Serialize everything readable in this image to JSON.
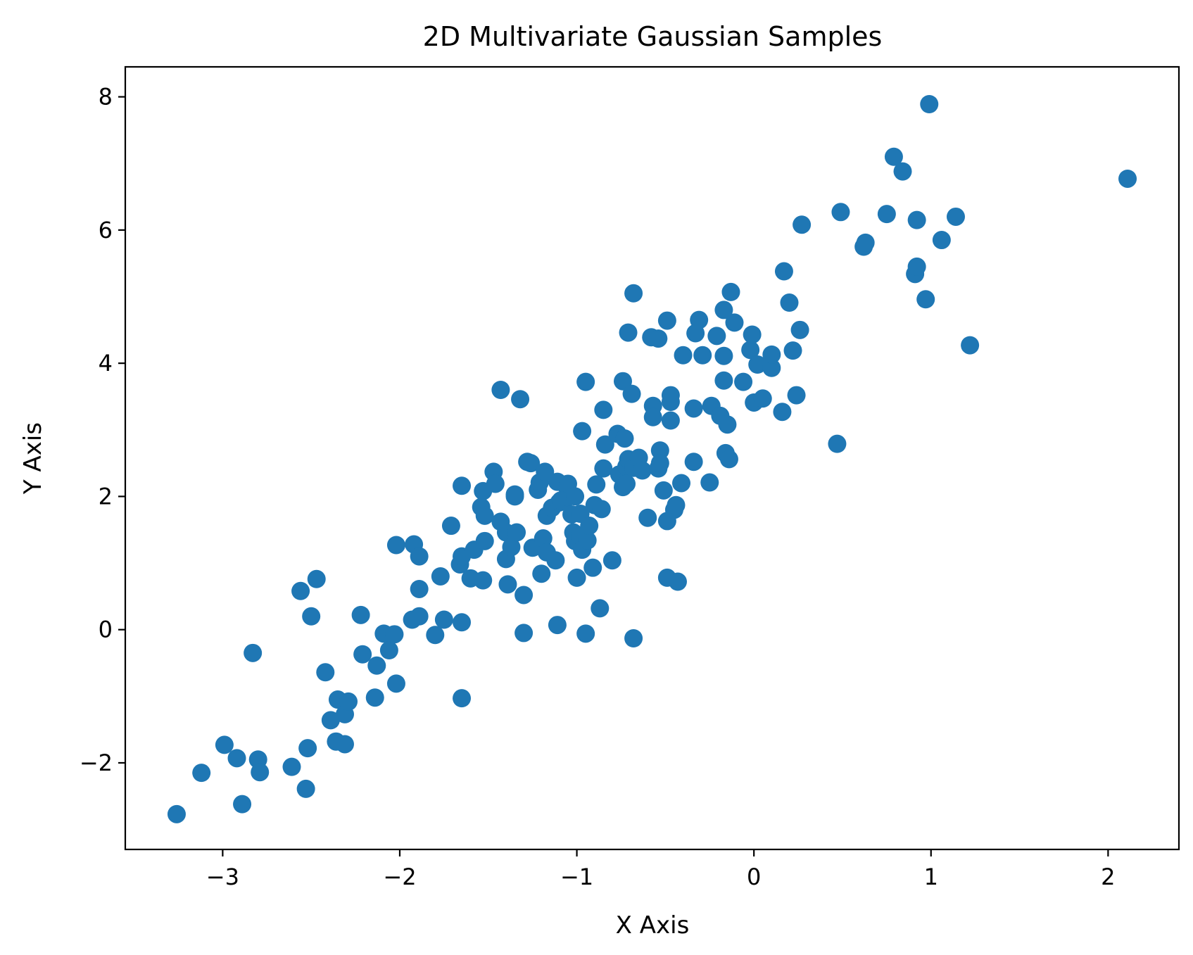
{
  "chart_data": {
    "type": "scatter",
    "title": "2D Multivariate Gaussian Samples",
    "xlabel": "X Axis",
    "ylabel": "Y Axis",
    "xlim": [
      -3.55,
      2.4
    ],
    "ylim": [
      -3.3,
      8.45
    ],
    "grid": false,
    "marker_color": "#1f77b4",
    "x_ticks": [
      -3,
      -2,
      -1,
      0,
      1,
      2
    ],
    "x_tick_labels": [
      "−3",
      "−2",
      "−1",
      "0",
      "1",
      "2"
    ],
    "y_ticks": [
      -2,
      0,
      2,
      4,
      6,
      8
    ],
    "y_tick_labels": [
      "−2",
      "0",
      "2",
      "4",
      "6",
      "8"
    ],
    "points": [
      [
        -3.26,
        -2.77
      ],
      [
        -3.12,
        -2.15
      ],
      [
        -2.99,
        -1.73
      ],
      [
        -2.92,
        -1.93
      ],
      [
        -2.89,
        -2.62
      ],
      [
        -2.8,
        -1.95
      ],
      [
        -2.79,
        -2.14
      ],
      [
        -2.83,
        -0.35
      ],
      [
        -2.61,
        -2.06
      ],
      [
        -2.52,
        -1.78
      ],
      [
        -2.53,
        -2.39
      ],
      [
        -2.56,
        0.58
      ],
      [
        -2.47,
        0.76
      ],
      [
        -2.5,
        0.2
      ],
      [
        -2.42,
        -0.64
      ],
      [
        -2.35,
        -1.05
      ],
      [
        -2.36,
        -1.68
      ],
      [
        -2.31,
        -1.72
      ],
      [
        -2.39,
        -1.36
      ],
      [
        -2.31,
        -1.27
      ],
      [
        -2.29,
        -1.08
      ],
      [
        -2.22,
        0.22
      ],
      [
        -2.21,
        -0.37
      ],
      [
        -2.14,
        -1.02
      ],
      [
        -2.13,
        -0.54
      ],
      [
        -2.09,
        -0.06
      ],
      [
        -2.06,
        -0.31
      ],
      [
        -2.03,
        -0.07
      ],
      [
        -2.02,
        -0.81
      ],
      [
        -2.02,
        1.27
      ],
      [
        -1.92,
        1.28
      ],
      [
        -1.93,
        0.15
      ],
      [
        -1.89,
        1.1
      ],
      [
        -1.89,
        0.2
      ],
      [
        -1.89,
        0.61
      ],
      [
        -1.8,
        -0.08
      ],
      [
        -1.77,
        0.8
      ],
      [
        -1.75,
        0.15
      ],
      [
        -1.71,
        1.56
      ],
      [
        -1.65,
        0.11
      ],
      [
        -1.65,
        -1.03
      ],
      [
        -1.66,
        0.98
      ],
      [
        -1.65,
        1.1
      ],
      [
        -1.65,
        2.16
      ],
      [
        -1.6,
        0.77
      ],
      [
        -1.58,
        1.2
      ],
      [
        -1.53,
        0.74
      ],
      [
        -1.54,
        1.84
      ],
      [
        -1.52,
        1.71
      ],
      [
        -1.52,
        1.33
      ],
      [
        -1.53,
        2.08
      ],
      [
        -1.47,
        2.37
      ],
      [
        -1.46,
        2.19
      ],
      [
        -1.43,
        3.6
      ],
      [
        -1.43,
        1.62
      ],
      [
        -1.4,
        1.06
      ],
      [
        -1.4,
        1.46
      ],
      [
        -1.39,
        0.68
      ],
      [
        -1.37,
        1.24
      ],
      [
        -1.35,
        2.03
      ],
      [
        -1.35,
        2.0
      ],
      [
        -1.34,
        1.46
      ],
      [
        -1.32,
        3.46
      ],
      [
        -1.3,
        -0.05
      ],
      [
        -1.3,
        0.52
      ],
      [
        -1.28,
        2.52
      ],
      [
        -1.26,
        2.5
      ],
      [
        -1.25,
        1.23
      ],
      [
        -1.22,
        2.1
      ],
      [
        -1.21,
        2.21
      ],
      [
        -1.2,
        0.84
      ],
      [
        -1.19,
        1.37
      ],
      [
        -1.18,
        2.37
      ],
      [
        -1.17,
        1.16
      ],
      [
        -1.17,
        1.71
      ],
      [
        -1.14,
        1.83
      ],
      [
        -1.12,
        1.04
      ],
      [
        -1.11,
        0.07
      ],
      [
        -1.11,
        2.22
      ],
      [
        -1.1,
        1.91
      ],
      [
        -1.09,
        1.94
      ],
      [
        -1.06,
        2.16
      ],
      [
        -1.05,
        1.99
      ],
      [
        -1.05,
        2.19
      ],
      [
        -1.02,
        1.46
      ],
      [
        -1.03,
        1.73
      ],
      [
        -1.01,
        2.0
      ],
      [
        -1.01,
        1.33
      ],
      [
        -1.0,
        0.78
      ],
      [
        -0.98,
        1.41
      ],
      [
        -0.98,
        1.74
      ],
      [
        -0.97,
        1.2
      ],
      [
        -0.97,
        2.98
      ],
      [
        -0.95,
        3.72
      ],
      [
        -0.95,
        -0.06
      ],
      [
        -0.94,
        1.34
      ],
      [
        -0.93,
        1.56
      ],
      [
        -0.91,
        0.93
      ],
      [
        -0.9,
        1.87
      ],
      [
        -0.89,
        2.18
      ],
      [
        -0.87,
        0.32
      ],
      [
        -0.86,
        1.81
      ],
      [
        -0.85,
        2.42
      ],
      [
        -0.85,
        3.3
      ],
      [
        -0.84,
        2.78
      ],
      [
        -0.8,
        1.04
      ],
      [
        -0.77,
        2.94
      ],
      [
        -0.76,
        2.33
      ],
      [
        -0.74,
        3.73
      ],
      [
        -0.74,
        2.14
      ],
      [
        -0.73,
        2.87
      ],
      [
        -0.72,
        2.45
      ],
      [
        -0.71,
        2.56
      ],
      [
        -0.72,
        2.19
      ],
      [
        -0.71,
        4.46
      ],
      [
        -0.69,
        3.54
      ],
      [
        -0.68,
        5.05
      ],
      [
        -0.68,
        -0.13
      ],
      [
        -0.68,
        2.43
      ],
      [
        -0.65,
        2.58
      ],
      [
        -0.63,
        2.39
      ],
      [
        -0.6,
        1.68
      ],
      [
        -0.58,
        4.39
      ],
      [
        -0.57,
        3.36
      ],
      [
        -0.57,
        3.19
      ],
      [
        -0.54,
        4.37
      ],
      [
        -0.54,
        2.42
      ],
      [
        -0.53,
        2.69
      ],
      [
        -0.53,
        2.5
      ],
      [
        -0.51,
        2.09
      ],
      [
        -0.49,
        0.78
      ],
      [
        -0.49,
        1.63
      ],
      [
        -0.49,
        4.64
      ],
      [
        -0.47,
        3.52
      ],
      [
        -0.47,
        3.42
      ],
      [
        -0.47,
        3.14
      ],
      [
        -0.45,
        1.8
      ],
      [
        -0.44,
        1.87
      ],
      [
        -0.43,
        0.72
      ],
      [
        -0.41,
        2.2
      ],
      [
        -0.4,
        4.12
      ],
      [
        -0.34,
        3.32
      ],
      [
        -0.34,
        2.52
      ],
      [
        -0.33,
        4.45
      ],
      [
        -0.31,
        4.65
      ],
      [
        -0.29,
        4.12
      ],
      [
        -0.25,
        2.21
      ],
      [
        -0.24,
        3.36
      ],
      [
        -0.21,
        4.41
      ],
      [
        -0.19,
        3.21
      ],
      [
        -0.17,
        3.74
      ],
      [
        -0.17,
        4.11
      ],
      [
        -0.17,
        4.8
      ],
      [
        -0.16,
        2.65
      ],
      [
        -0.15,
        3.08
      ],
      [
        -0.14,
        2.56
      ],
      [
        -0.13,
        5.07
      ],
      [
        -0.11,
        4.61
      ],
      [
        -0.06,
        3.72
      ],
      [
        -0.02,
        4.2
      ],
      [
        -0.01,
        4.43
      ],
      [
        0.0,
        3.41
      ],
      [
        0.02,
        3.98
      ],
      [
        0.05,
        3.47
      ],
      [
        0.1,
        3.93
      ],
      [
        0.1,
        4.13
      ],
      [
        0.16,
        3.27
      ],
      [
        0.17,
        5.38
      ],
      [
        0.2,
        4.91
      ],
      [
        0.22,
        4.19
      ],
      [
        0.24,
        3.52
      ],
      [
        0.26,
        4.5
      ],
      [
        0.27,
        6.08
      ],
      [
        0.47,
        2.79
      ],
      [
        0.49,
        6.27
      ],
      [
        0.62,
        5.75
      ],
      [
        0.63,
        5.81
      ],
      [
        0.75,
        6.24
      ],
      [
        0.79,
        7.1
      ],
      [
        0.84,
        6.88
      ],
      [
        0.91,
        5.34
      ],
      [
        0.92,
        6.15
      ],
      [
        0.92,
        5.45
      ],
      [
        0.97,
        4.96
      ],
      [
        0.99,
        7.89
      ],
      [
        1.06,
        5.85
      ],
      [
        1.14,
        6.2
      ],
      [
        1.22,
        4.27
      ],
      [
        2.11,
        6.77
      ]
    ]
  }
}
